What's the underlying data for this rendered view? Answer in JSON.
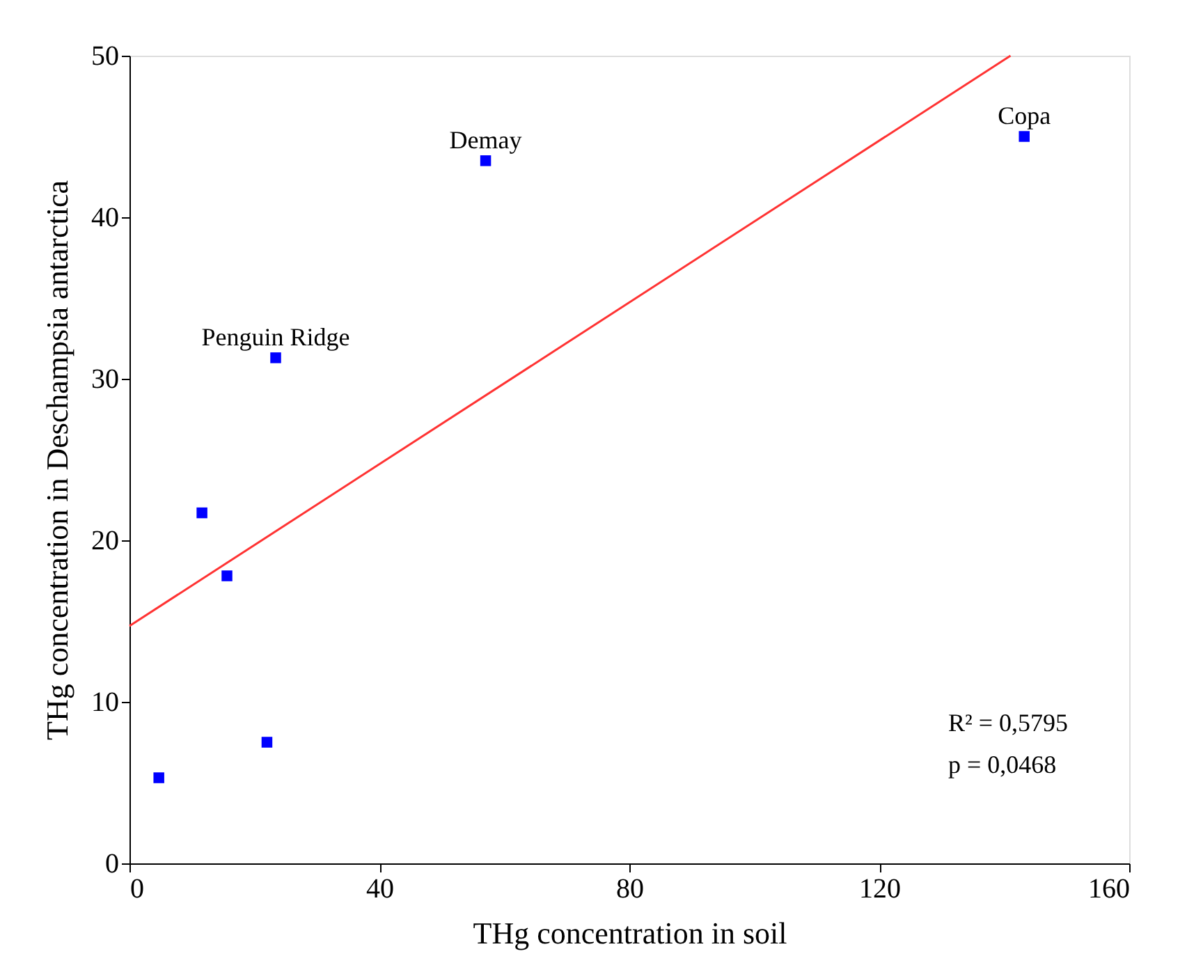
{
  "chart_data": {
    "type": "scatter",
    "xlabel": "THg concentration in soil",
    "ylabel": "THg concentration in Deschampsia antarctica",
    "series": [
      {
        "color": "#0000ff",
        "marker": "square",
        "x": [
          4.7,
          11.6,
          15.6,
          22.0,
          23.4,
          57.0,
          143.2
        ],
        "values": [
          5.3,
          21.7,
          17.8,
          7.5,
          31.3,
          43.5,
          45.0
        ]
      },
      {
        "type": "line",
        "color": "#ff3333",
        "marker": "none",
        "line_style": "solid",
        "x": [
          0,
          141
        ],
        "values": [
          14.7,
          50.0
        ]
      }
    ],
    "xlim": [
      0,
      160
    ],
    "xticks": [
      0,
      40,
      80,
      120,
      160
    ],
    "ylim": [
      0,
      50
    ],
    "yticks": [
      0,
      10,
      20,
      30,
      40,
      50
    ],
    "grid": false,
    "annotations": [
      {
        "text": "Penguin Ridge",
        "x": 23.4,
        "y": 31.3
      },
      {
        "text": "Demay",
        "x": 57.0,
        "y": 43.5
      },
      {
        "text": "Copa",
        "x": 143.2,
        "y": 45.0
      },
      "R² = 0,5795",
      "p = 0,0468"
    ]
  }
}
